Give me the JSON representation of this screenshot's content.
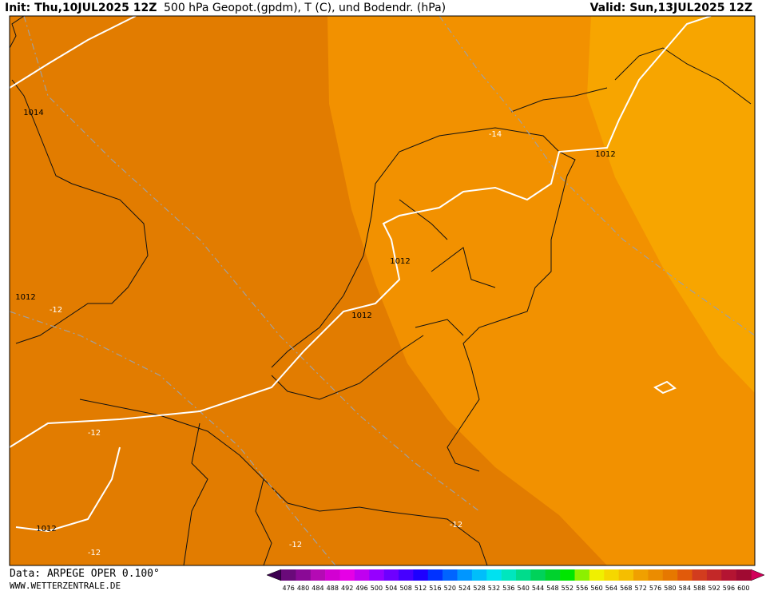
{
  "header": {
    "init": "Init: Thu,10JUL2025 12Z",
    "title": "500 hPa Geopot.(gpdm), T (C), und Bodendr. (hPa)",
    "valid": "Valid: Sun,13JUL2025 12Z"
  },
  "map": {
    "contour_labels": [
      "1014",
      "1012",
      "-14",
      "1012",
      "1012",
      "-12",
      "1012",
      "-12",
      "1012",
      "-12",
      "-12",
      "-12"
    ]
  },
  "footer": {
    "data": "Data: ARPEGE OPER 0.100°",
    "site": "WWW.WETTERZENTRALE.DE"
  },
  "colorbar": {
    "labels": [
      476,
      480,
      484,
      488,
      492,
      496,
      500,
      504,
      508,
      512,
      516,
      520,
      524,
      528,
      532,
      536,
      540,
      544,
      548,
      552,
      556,
      560,
      564,
      568,
      572,
      576,
      580,
      584,
      588,
      592,
      596,
      600
    ],
    "colors": [
      "#6a0a7a",
      "#8a0a96",
      "#b40ab4",
      "#d200d2",
      "#e600e6",
      "#c000f0",
      "#9600ff",
      "#6e00ff",
      "#4600ff",
      "#1e00ff",
      "#0032ff",
      "#0064ff",
      "#0096ff",
      "#00befa",
      "#00e1f0",
      "#00e6be",
      "#00dc8c",
      "#00d25a",
      "#00d22d",
      "#00e600",
      "#8cf000",
      "#f0f000",
      "#f5d700",
      "#f5be00",
      "#f0a000",
      "#eb8c00",
      "#e67800",
      "#e15a0a",
      "#d23c1e",
      "#c32828",
      "#b41432",
      "#a00a32"
    ]
  }
}
